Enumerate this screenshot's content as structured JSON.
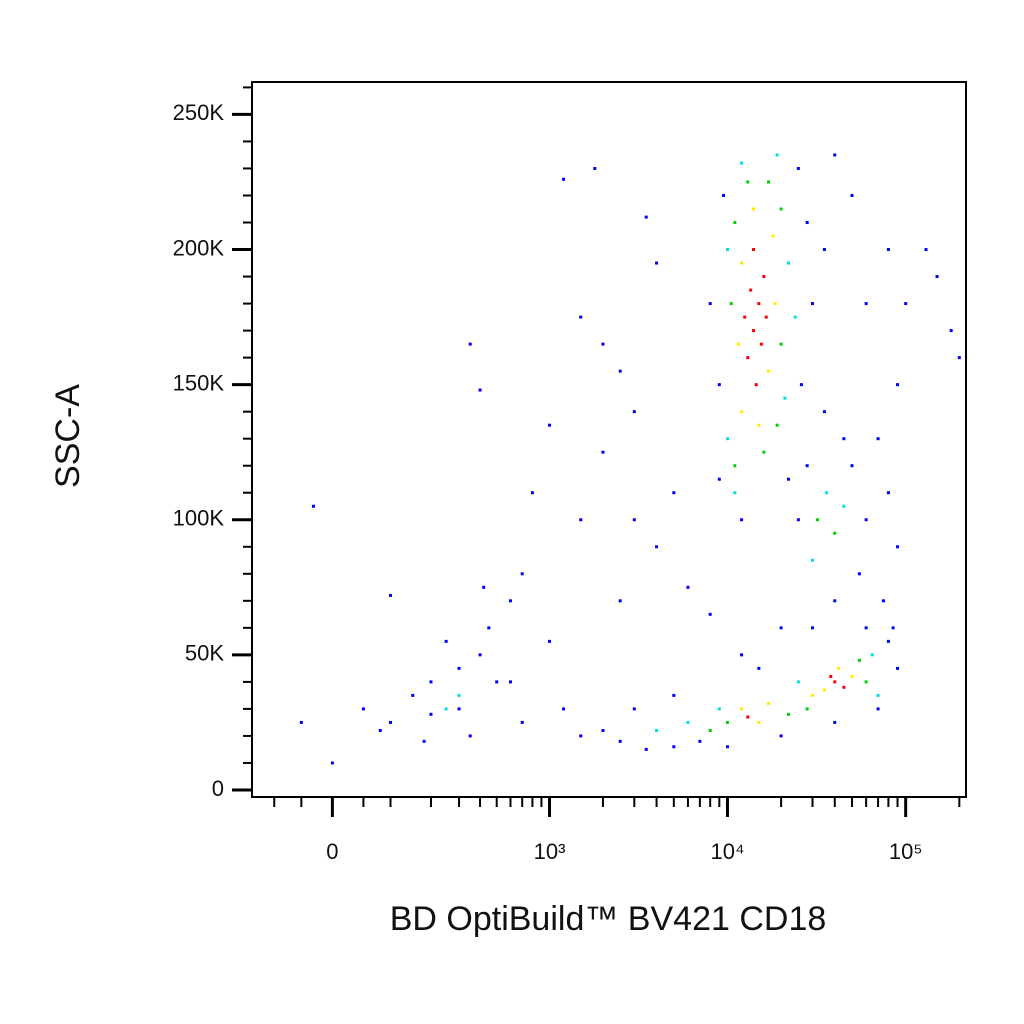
{
  "chart_data": {
    "type": "scatter",
    "x_label": "BD OptiBuild™ BV421 CD18",
    "y_label": "SSC-A",
    "x_scale": "biexponential",
    "xlim": [
      -150,
      218000
    ],
    "ylim": [
      -2600,
      262000
    ],
    "xticks": [
      0,
      {
        "value": 1000,
        "label": "10³"
      },
      {
        "value": 10000,
        "label": "10⁴"
      },
      {
        "value": 100000,
        "label": "10⁵"
      }
    ],
    "xminorticks": [
      -100,
      -50,
      50,
      100,
      200,
      300,
      400,
      500,
      600,
      700,
      800,
      900,
      2000,
      3000,
      4000,
      5000,
      6000,
      7000,
      8000,
      9000,
      20000,
      30000,
      40000,
      50000,
      60000,
      70000,
      80000,
      90000,
      200000
    ],
    "yticks": [
      0,
      {
        "value": 50000,
        "label": "50K"
      },
      {
        "value": 100000,
        "label": "100K"
      },
      {
        "value": 150000,
        "label": "150K"
      },
      {
        "value": 200000,
        "label": "200K"
      },
      {
        "value": 250000,
        "label": "250K"
      }
    ],
    "yminorticks": [
      10000,
      20000,
      30000,
      40000,
      60000,
      70000,
      80000,
      90000,
      110000,
      120000,
      130000,
      140000,
      160000,
      170000,
      180000,
      190000,
      210000,
      220000,
      230000,
      240000,
      260000
    ],
    "series": [
      {
        "color": "#0000ff",
        "x": [
          9000,
          9500,
          25000,
          28000,
          26000,
          9000,
          22000,
          30000,
          35000,
          8000,
          40000,
          12000,
          50000,
          25000,
          28000,
          50000,
          60000,
          70000,
          80000,
          55000,
          40000,
          75000,
          30000,
          90000,
          85000,
          45000,
          35000,
          100000,
          150000,
          180000,
          200000,
          130000,
          90000,
          60000,
          80000,
          7000,
          10000,
          20000,
          40000,
          70000,
          80000,
          90000,
          60000,
          15000,
          12000,
          5000,
          3000,
          2500,
          2000,
          3500,
          5000,
          1500,
          20000,
          8000,
          1200,
          1800,
          3500,
          4000,
          2000,
          1500,
          2500,
          3000,
          1000,
          2000,
          800,
          1500,
          3000,
          4000,
          2500,
          700,
          1000,
          1200,
          600,
          700,
          5000,
          6000,
          0,
          50,
          100,
          150,
          200,
          300,
          400,
          500,
          350,
          180,
          80,
          -50,
          -30,
          100,
          350,
          400,
          450,
          600,
          250,
          420,
          300,
          200
        ],
        "y": [
          150000,
          220000,
          230000,
          210000,
          150000,
          115000,
          115000,
          180000,
          200000,
          180000,
          235000,
          100000,
          220000,
          100000,
          120000,
          120000,
          100000,
          130000,
          110000,
          80000,
          70000,
          70000,
          60000,
          90000,
          60000,
          130000,
          140000,
          180000,
          190000,
          170000,
          160000,
          200000,
          150000,
          180000,
          200000,
          18000,
          16000,
          20000,
          25000,
          30000,
          55000,
          45000,
          60000,
          45000,
          50000,
          35000,
          30000,
          18000,
          22000,
          15000,
          16000,
          20000,
          60000,
          65000,
          226000,
          230000,
          212000,
          195000,
          165000,
          175000,
          155000,
          140000,
          135000,
          125000,
          110000,
          100000,
          100000,
          90000,
          70000,
          80000,
          55000,
          30000,
          40000,
          25000,
          110000,
          75000,
          10000,
          30000,
          25000,
          35000,
          28000,
          45000,
          50000,
          40000,
          20000,
          18000,
          22000,
          25000,
          105000,
          72000,
          165000,
          148000,
          60000,
          70000,
          55000,
          75000,
          30000,
          40000
        ]
      },
      {
        "color": "#00e0e0",
        "x": [
          10000,
          21000,
          10000,
          22000,
          12000,
          19000,
          24000,
          11000,
          36000,
          30000,
          45000,
          65000,
          25000,
          9000,
          6000,
          4000,
          70000,
          300,
          250
        ],
        "y": [
          130000,
          145000,
          200000,
          195000,
          232000,
          235000,
          175000,
          110000,
          110000,
          85000,
          105000,
          50000,
          40000,
          30000,
          25000,
          22000,
          35000,
          35000,
          30000
        ]
      },
      {
        "color": "#00d000",
        "x": [
          11000,
          19000,
          11000,
          20000,
          13000,
          17000,
          10500,
          20000,
          16000,
          55000,
          28000,
          22000,
          10000,
          8000,
          60000,
          32000,
          40000
        ],
        "y": [
          120000,
          135000,
          210000,
          215000,
          225000,
          225000,
          180000,
          165000,
          125000,
          48000,
          30000,
          28000,
          25000,
          22000,
          40000,
          100000,
          95000
        ]
      },
      {
        "color": "#ffee00",
        "x": [
          12000,
          17000,
          12000,
          18000,
          15000,
          11500,
          18500,
          14000,
          42000,
          35000,
          50000,
          12000,
          15000,
          17000,
          30000
        ],
        "y": [
          140000,
          155000,
          195000,
          205000,
          135000,
          165000,
          180000,
          215000,
          45000,
          37000,
          42000,
          30000,
          25000,
          32000,
          35000
        ]
      },
      {
        "color": "#ff0000",
        "x": [
          14000,
          15000,
          13000,
          16000,
          14500,
          13500,
          15500,
          12500,
          16500,
          14000,
          40000,
          45000,
          38000,
          13000
        ],
        "y": [
          170000,
          180000,
          160000,
          190000,
          150000,
          185000,
          165000,
          175000,
          175000,
          200000,
          40000,
          38000,
          42000,
          27000
        ]
      }
    ]
  }
}
